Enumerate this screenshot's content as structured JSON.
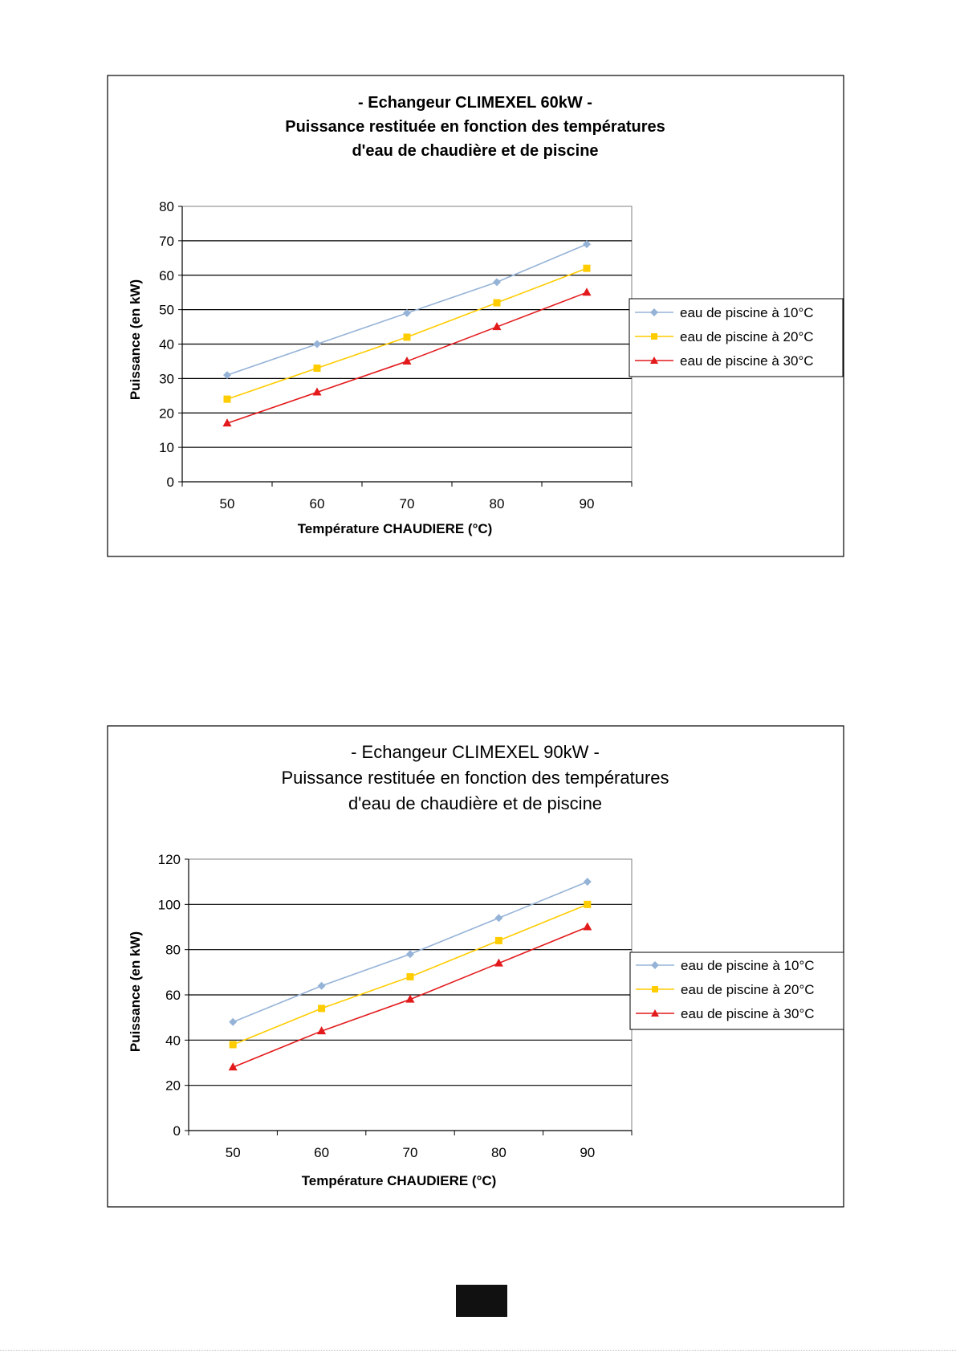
{
  "colors": {
    "series_10": "#95b3d7",
    "series_20": "#ffcc00",
    "series_30": "#e31a1c",
    "gridline": "#000000",
    "plot_border": "#808080",
    "page_marker": "#111111"
  },
  "chart_data": [
    {
      "type": "line",
      "title_lines": [
        "- Echangeur CLIMEXEL 60kW -",
        "Puissance restituée en fonction des températures",
        "d'eau de chaudière et de piscine"
      ],
      "xlabel": "Température CHAUDIERE (°C)",
      "ylabel": "Puissance (en kW)",
      "categories": [
        "50",
        "60",
        "70",
        "80",
        "90"
      ],
      "ylim": [
        0,
        80
      ],
      "yticks": [
        0,
        10,
        20,
        30,
        40,
        50,
        60,
        70,
        80
      ],
      "grid": "horizontal",
      "legend_position": "right",
      "series": [
        {
          "name": "eau de piscine à 10°C",
          "values": [
            31,
            40,
            49,
            58,
            69
          ],
          "marker": "diamond",
          "color_key": "series_10"
        },
        {
          "name": "eau de piscine à 20°C",
          "values": [
            24,
            33,
            42,
            52,
            62
          ],
          "marker": "square",
          "color_key": "series_20"
        },
        {
          "name": "eau de piscine à 30°C",
          "values": [
            17,
            26,
            35,
            45,
            55
          ],
          "marker": "triangle",
          "color_key": "series_30"
        }
      ]
    },
    {
      "type": "line",
      "title_lines": [
        "- Echangeur CLIMEXEL 90kW -",
        "Puissance restituée en fonction des températures",
        "d'eau de chaudière et de piscine"
      ],
      "xlabel": "Température CHAUDIERE (°C)",
      "ylabel": "Puissance (en kW)",
      "categories": [
        "50",
        "60",
        "70",
        "80",
        "90"
      ],
      "ylim": [
        0,
        120
      ],
      "yticks": [
        0,
        20,
        40,
        60,
        80,
        100,
        120
      ],
      "grid": "horizontal",
      "legend_position": "right",
      "series": [
        {
          "name": "eau de piscine à 10°C",
          "values": [
            48,
            64,
            78,
            94,
            110
          ],
          "marker": "diamond",
          "color_key": "series_10"
        },
        {
          "name": "eau de piscine à 20°C",
          "values": [
            38,
            54,
            68,
            84,
            100
          ],
          "marker": "square",
          "color_key": "series_20"
        },
        {
          "name": "eau de piscine à 30°C",
          "values": [
            28,
            44,
            58,
            74,
            90
          ],
          "marker": "triangle",
          "color_key": "series_30"
        }
      ]
    }
  ]
}
